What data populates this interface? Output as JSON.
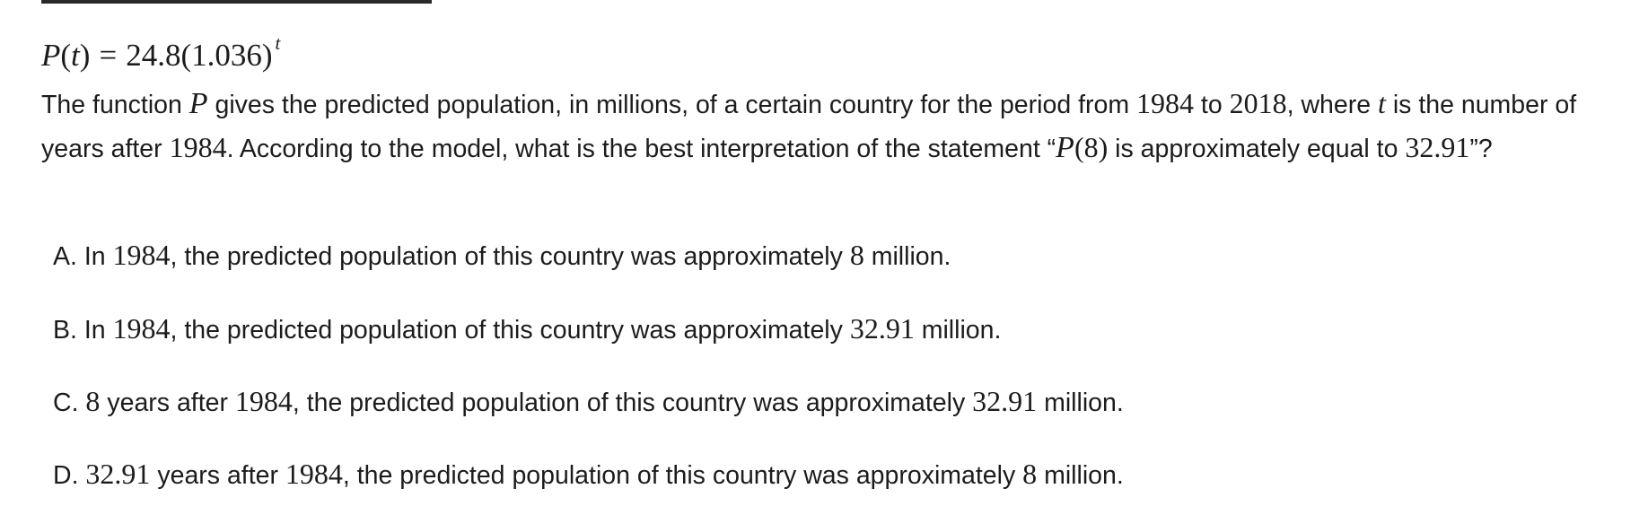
{
  "formula": {
    "lhs_fn": "P",
    "lhs_var": "t",
    "equals": "=",
    "base_coefficient": "24.8",
    "base": "1.036",
    "exponent": "t"
  },
  "question": {
    "p1": "The function ",
    "fn": "P",
    "p2": " gives the predicted population, in millions, of a certain country for the period from ",
    "y1": "1984",
    "p3": " to ",
    "y2": "2018",
    "p4": ", where ",
    "var": "t",
    "p5": " is the number of years after ",
    "y3": "1984",
    "p6": ". According to the model, what is the best interpretation of the statement “",
    "expr_fn": "P",
    "expr_arg": "(8)",
    "p7": " is approximately equal to ",
    "val": "32.91",
    "p8": "”?"
  },
  "choices": [
    {
      "letter": "A.",
      "t1": " In ",
      "m1": "1984",
      "t2": ", the predicted population of this country was approximately ",
      "m2": "8",
      "t3": " million."
    },
    {
      "letter": "B.",
      "t1": " In ",
      "m1": "1984",
      "t2": ", the predicted population of this country was approximately ",
      "m2": "32.91",
      "t3": " million."
    },
    {
      "letter": "C.",
      "t0": " ",
      "m0": "8",
      "t1": " years after ",
      "m1": "1984",
      "t2": ", the predicted population of this country was approximately ",
      "m2": "32.91",
      "t3": " million."
    },
    {
      "letter": "D.",
      "t0": " ",
      "m0": "32.91",
      "t1": " years after ",
      "m1": "1984",
      "t2": ", the predicted population of this country was approximately ",
      "m2": "8",
      "t3": " million."
    }
  ]
}
